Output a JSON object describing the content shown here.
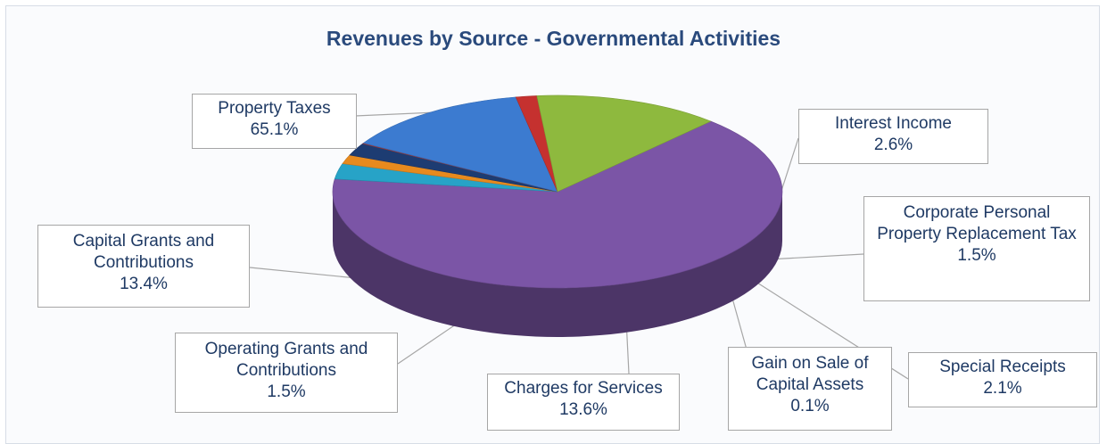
{
  "chart_data": {
    "type": "pie",
    "title": "Revenues by Source - Governmental Activities",
    "slices": [
      {
        "label": "Property Taxes",
        "value": 65.1,
        "value_label": "65.1%",
        "color": "#7b55a6"
      },
      {
        "label": "Interest Income",
        "value": 2.6,
        "value_label": "2.6%",
        "color": "#27a3c7"
      },
      {
        "label": "Corporate Personal Property Replacement Tax",
        "value": 1.5,
        "value_label": "1.5%",
        "color": "#e78a1e"
      },
      {
        "label": "Special Receipts",
        "value": 2.1,
        "value_label": "2.1%",
        "color": "#1d3c72"
      },
      {
        "label": "Gain on Sale of Capital Assets",
        "value": 0.1,
        "value_label": "0.1%",
        "color": "#c03b32"
      },
      {
        "label": "Charges for Services",
        "value": 13.6,
        "value_label": "13.6%",
        "color": "#3c7bd0"
      },
      {
        "label": "Operating Grants and Contributions",
        "value": 1.5,
        "value_label": "1.5%",
        "color": "#c5312f"
      },
      {
        "label": "Capital Grants and Contributions",
        "value": 13.4,
        "value_label": "13.4%",
        "color": "#8eb93e"
      }
    ]
  }
}
